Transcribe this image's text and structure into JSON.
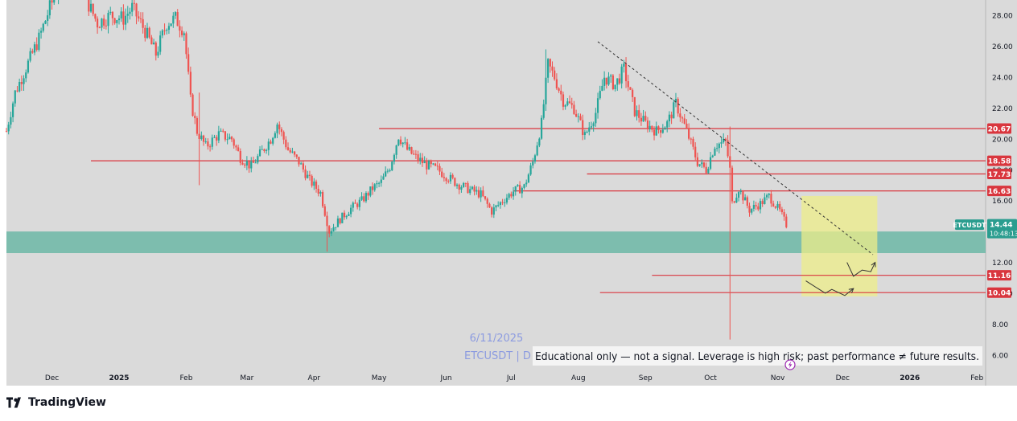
{
  "symbol_tag": "ETCUSDT",
  "price_value": "14.44",
  "countdown": "10:48:13",
  "watermark_date": "6/11/2025",
  "watermark_symbol": "ETCUSDT | D",
  "disclaimer": "Educational only — not a signal. Leverage is high risk; past performance ≠ future results.",
  "brand_name": "TradingView",
  "colors": {
    "background": "#dadada",
    "level_line": "#d9363e",
    "zone_fill": "#6fb8a7",
    "target_box": "#eeee88",
    "candle_up": "#26a69a",
    "candle_down": "#ef5350",
    "trendline": "#333333"
  },
  "icon_names": [
    "logo-icon",
    "lightning-icon"
  ],
  "chart_data": {
    "type": "candlestick",
    "y_axis": {
      "min": 5,
      "max": 29,
      "ticks": [
        6,
        8,
        10,
        12,
        14,
        16,
        18,
        20,
        22,
        24,
        26,
        28
      ],
      "tick_labels": [
        "6.00",
        "8.00",
        "10.00",
        "12.00",
        "14.00",
        "16.00",
        "18.00",
        "20.00",
        "22.00",
        "24.00",
        "26.00",
        "28.00"
      ]
    },
    "x_axis": {
      "labels": [
        "Dec",
        "2025",
        "Feb",
        "Mar",
        "Apr",
        "May",
        "Jun",
        "Jul",
        "Aug",
        "Sep",
        "Oct",
        "Nov",
        "Dec",
        "2026",
        "Feb"
      ],
      "dates": [
        "2024-12-01",
        "2025-01-01",
        "2025-02-01",
        "2025-03-01",
        "2025-04-01",
        "2025-05-01",
        "2025-06-01",
        "2025-07-01",
        "2025-08-01",
        "2025-09-01",
        "2025-10-01",
        "2025-11-01",
        "2025-12-01",
        "2026-01-01",
        "2026-02-01"
      ],
      "start": "2024-11-10",
      "end": "2026-02-05"
    },
    "anchors": [
      [
        "2024-11-10",
        20.5
      ],
      [
        "2024-11-14",
        23.0
      ],
      [
        "2024-11-25",
        26.5
      ],
      [
        "2024-11-30",
        28.5
      ],
      [
        "2024-12-06",
        30.5
      ],
      [
        "2024-12-12",
        32.0
      ],
      [
        "2024-12-17",
        29.0
      ],
      [
        "2024-12-22",
        27.5
      ],
      [
        "2024-12-28",
        28.0
      ],
      [
        "2025-01-03",
        27.8
      ],
      [
        "2025-01-07",
        28.5
      ],
      [
        "2025-01-13",
        27.0
      ],
      [
        "2025-01-18",
        25.5
      ],
      [
        "2025-01-23",
        27.5
      ],
      [
        "2025-01-27",
        27.8
      ],
      [
        "2025-01-31",
        27.0
      ],
      [
        "2025-02-03",
        22.5
      ],
      [
        "2025-02-06",
        20.5
      ],
      [
        "2025-02-10",
        19.5
      ],
      [
        "2025-02-16",
        20.3
      ],
      [
        "2025-02-22",
        20.0
      ],
      [
        "2025-02-26",
        18.8
      ],
      [
        "2025-03-03",
        18.2
      ],
      [
        "2025-03-07",
        19.0
      ],
      [
        "2025-03-12",
        20.0
      ],
      [
        "2025-03-15",
        21.0
      ],
      [
        "2025-03-20",
        19.3
      ],
      [
        "2025-03-25",
        18.5
      ],
      [
        "2025-03-30",
        17.3
      ],
      [
        "2025-04-04",
        16.5
      ],
      [
        "2025-04-08",
        14.0
      ],
      [
        "2025-04-13",
        14.8
      ],
      [
        "2025-04-18",
        15.5
      ],
      [
        "2025-04-23",
        16.0
      ],
      [
        "2025-04-28",
        16.8
      ],
      [
        "2025-05-02",
        17.2
      ],
      [
        "2025-05-06",
        18.2
      ],
      [
        "2025-05-10",
        20.2
      ],
      [
        "2025-05-14",
        19.3
      ],
      [
        "2025-05-18",
        18.8
      ],
      [
        "2025-05-23",
        18.3
      ],
      [
        "2025-05-28",
        18.0
      ],
      [
        "2025-06-02",
        17.5
      ],
      [
        "2025-06-06",
        17.1
      ],
      [
        "2025-06-12",
        16.7
      ],
      [
        "2025-06-17",
        16.4
      ],
      [
        "2025-06-22",
        15.3
      ],
      [
        "2025-06-27",
        16.0
      ],
      [
        "2025-07-02",
        16.6
      ],
      [
        "2025-07-07",
        16.9
      ],
      [
        "2025-07-11",
        18.5
      ],
      [
        "2025-07-15",
        21.0
      ],
      [
        "2025-07-18",
        24.8
      ],
      [
        "2025-07-21",
        24.0
      ],
      [
        "2025-07-25",
        22.5
      ],
      [
        "2025-07-30",
        22.0
      ],
      [
        "2025-08-04",
        20.2
      ],
      [
        "2025-08-09",
        21.7
      ],
      [
        "2025-08-13",
        24.0
      ],
      [
        "2025-08-18",
        23.5
      ],
      [
        "2025-08-22",
        24.5
      ],
      [
        "2025-08-27",
        21.8
      ],
      [
        "2025-09-01",
        21.0
      ],
      [
        "2025-09-06",
        20.5
      ],
      [
        "2025-09-11",
        21.0
      ],
      [
        "2025-09-15",
        22.3
      ],
      [
        "2025-09-20",
        20.5
      ],
      [
        "2025-09-25",
        18.5
      ],
      [
        "2025-09-29",
        18.0
      ],
      [
        "2025-10-03",
        19.6
      ],
      [
        "2025-10-08",
        19.8
      ],
      [
        "2025-10-10",
        18.0
      ],
      [
        "2025-10-11",
        15.8
      ],
      [
        "2025-10-14",
        16.8
      ],
      [
        "2025-10-19",
        15.4
      ],
      [
        "2025-10-24",
        15.8
      ],
      [
        "2025-10-28",
        16.3
      ],
      [
        "2025-11-02",
        15.3
      ],
      [
        "2025-11-05",
        14.44
      ]
    ],
    "wick_extremes": [
      {
        "date": "2025-02-07",
        "high": 23.0,
        "low": 17.0
      },
      {
        "date": "2025-04-07",
        "low": 12.7
      },
      {
        "date": "2025-07-17",
        "high": 25.8
      },
      {
        "date": "2025-08-23",
        "high": 25.3
      },
      {
        "date": "2025-10-10",
        "high": 20.8,
        "low": 7.0
      }
    ],
    "horizontal_levels": [
      {
        "price": 20.67,
        "label": "20.67",
        "from": "2025-05-01"
      },
      {
        "price": 18.58,
        "label": "18.58",
        "from": "2024-12-19"
      },
      {
        "price": 17.73,
        "label": "17.73",
        "from": "2025-08-05"
      },
      {
        "price": 16.63,
        "label": "16.63",
        "from": "2025-07-02"
      },
      {
        "price": 11.16,
        "label": "11.16",
        "from": "2025-09-04"
      },
      {
        "price": 10.04,
        "label": "10.04",
        "from": "2025-08-11"
      }
    ],
    "support_zone": {
      "top": 14.0,
      "bottom": 12.6
    },
    "trendline": {
      "from": [
        "2025-08-10",
        26.3
      ],
      "to": [
        "2025-12-15",
        12.5
      ]
    },
    "target_box": {
      "from": "2025-11-12",
      "to": "2025-12-17",
      "top": 16.3,
      "bottom": 9.8
    },
    "projected_paths": [
      [
        [
          "2025-11-14",
          10.8
        ],
        [
          "2025-11-23",
          10.0
        ],
        [
          "2025-11-26",
          10.25
        ],
        [
          "2025-12-02",
          9.85
        ],
        [
          "2025-12-06",
          10.3
        ]
      ],
      [
        [
          "2025-12-03",
          12.0
        ],
        [
          "2025-12-06",
          11.1
        ],
        [
          "2025-12-10",
          11.5
        ],
        [
          "2025-12-14",
          11.4
        ],
        [
          "2025-12-16",
          12.0
        ]
      ]
    ]
  }
}
